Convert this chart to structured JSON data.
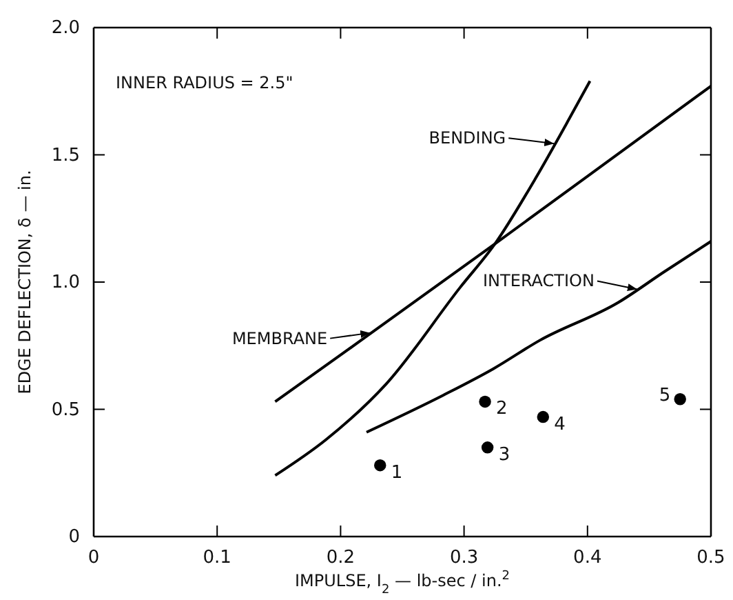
{
  "chart_data": {
    "type": "line",
    "xlabel": "IMPULSE, I$_{2}$ — lb-sec / in.$^{2}$",
    "ylabel": "EDGE DEFLECTION, δ — in.",
    "annotations": [
      "INNER RADIUS = 2.5\"",
      {
        "text": "1",
        "x": 0.232,
        "y": 0.28
      },
      {
        "text": "2",
        "x": 0.317,
        "y": 0.53
      },
      {
        "text": "3",
        "x": 0.319,
        "y": 0.35
      },
      {
        "text": "4",
        "x": 0.364,
        "y": 0.47
      },
      {
        "text": "5",
        "x": 0.475,
        "y": 0.54
      }
    ],
    "xlim": [
      0,
      0.5
    ],
    "xticks": [
      0,
      0.1,
      0.2,
      0.3,
      0.4,
      0.5
    ],
    "ylim": [
      0,
      2.0
    ],
    "yticks": [
      0,
      0.5,
      {
        "value": 1.0,
        "label": "1.0"
      },
      1.5,
      {
        "value": 2.0,
        "label": "2.0"
      }
    ],
    "grid": false,
    "legend": "center",
    "line_style": "solid",
    "series": [
      {
        "name": "BENDING",
        "color": "#000000",
        "x": [
          0.147,
          0.188,
          0.237,
          0.297,
          0.325,
          0.357,
          0.385,
          0.402
        ],
        "values": [
          0.24,
          0.38,
          0.6,
          0.98,
          1.15,
          1.4,
          1.64,
          1.79
        ]
      },
      {
        "name": "MEMBRANE",
        "color": "#000000",
        "x": [
          0.147,
          0.222,
          0.325,
          0.5
        ],
        "values": [
          0.53,
          0.79,
          1.15,
          1.77
        ]
      },
      {
        "name": "INTERACTION",
        "color": "#000000",
        "x": [
          0.221,
          0.283,
          0.324,
          0.361,
          0.425,
          0.462,
          0.5
        ],
        "values": [
          0.41,
          0.555,
          0.66,
          0.77,
          0.92,
          1.04,
          1.16
        ]
      },
      {
        "type": "scatter",
        "marker": "circle",
        "color": "#000000",
        "x": [
          0.232,
          0.317,
          0.319,
          0.364,
          0.475
        ],
        "values": [
          0.28,
          0.53,
          0.35,
          0.47,
          0.54
        ]
      }
    ]
  }
}
